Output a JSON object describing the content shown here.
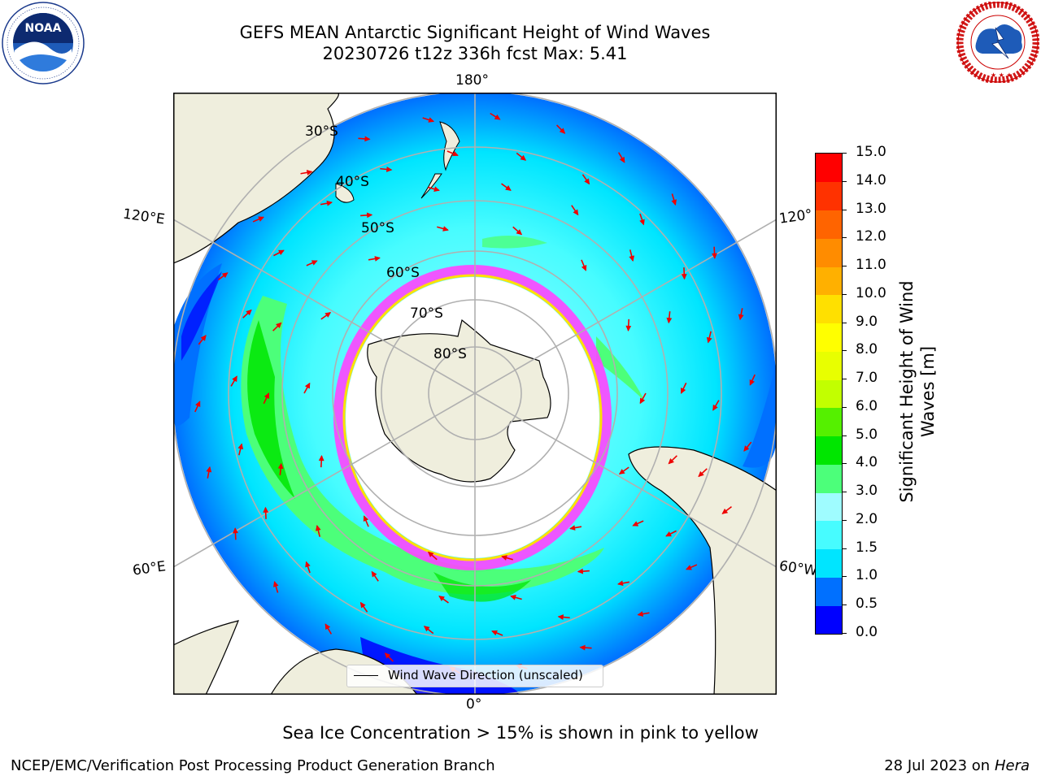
{
  "header": {
    "title_line1": "GEFS MEAN Antarctic Significant Height of Wind Waves",
    "title_line2": "20230726 t12z 336h fcst   Max: 5.41"
  },
  "logos": {
    "left": {
      "name": "noaa-logo",
      "text": "NOAA",
      "ring_text": "NATIONAL OCEANIC AND ATMOSPHERIC ADMINISTRATION · U.S. DEPARTMENT OF COMMERCE"
    },
    "right": {
      "name": "nws-logo",
      "ring_text": "NATIONAL WEATHER SERVICE"
    }
  },
  "map": {
    "longitude_labels": {
      "top": "180°",
      "bottom": "0°",
      "left_upper": "120°E",
      "left_lower": "60°E",
      "right_upper": "120°",
      "right_lower": "60°W"
    },
    "latitude_labels": [
      "30°S",
      "40°S",
      "50°S",
      "60°S",
      "70°S",
      "80°S"
    ],
    "legend_label": "Wind Wave Direction (unscaled)",
    "colors": {
      "land": "#efeedd",
      "ice_edge_pink": "#ff44ff",
      "arrow": "#ee0000",
      "grid": "#b0b0b0"
    }
  },
  "colorbar": {
    "label_line1": "Significant Height of Wind",
    "label_line2": "Waves [m]",
    "ticks": [
      "0.0",
      "0.5",
      "1.0",
      "1.5",
      "2.0",
      "3.0",
      "4.0",
      "5.0",
      "6.0",
      "7.0",
      "8.0",
      "9.0",
      "10.0",
      "11.0",
      "12.0",
      "13.0",
      "14.0",
      "15.0"
    ],
    "colors": [
      "#0000ff",
      "#0070ff",
      "#00e5ff",
      "#47fcff",
      "#9ffcff",
      "#4cff7a",
      "#00e600",
      "#55f000",
      "#c2ff00",
      "#e8ff00",
      "#ffff00",
      "#ffe000",
      "#ffb000",
      "#ff8c00",
      "#ff6400",
      "#ff3200",
      "#ff0000"
    ]
  },
  "caption": "Sea Ice Concentration > 15% is shown in pink to yellow",
  "footer": {
    "left": "NCEP/EMC/Verification Post Processing Product Generation Branch",
    "right_prefix": "28 Jul 2023 on ",
    "right_machine": "Hera"
  }
}
